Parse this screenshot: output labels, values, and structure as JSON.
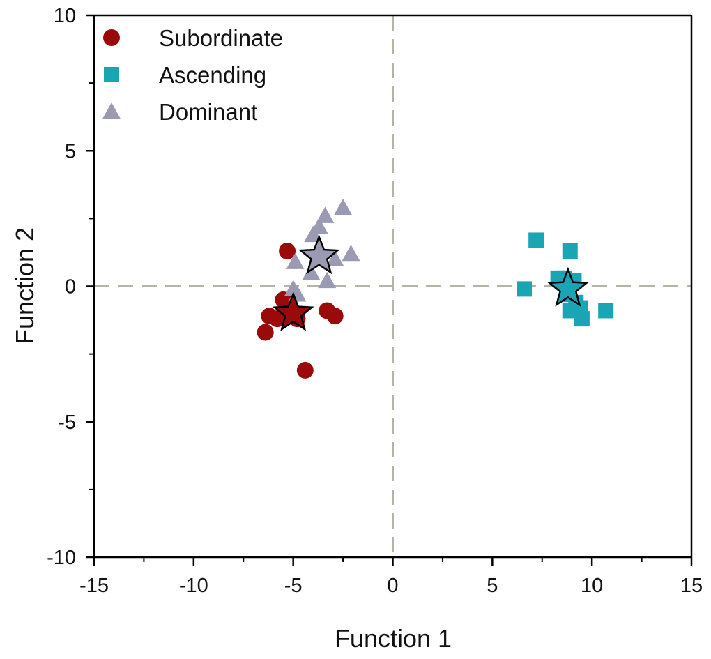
{
  "chart_data": {
    "type": "scatter",
    "xlabel": "Function 1",
    "ylabel": "Function 2",
    "xlim": [
      -15,
      15
    ],
    "ylim": [
      -10,
      10
    ],
    "xticks": [
      -15,
      -10,
      -5,
      0,
      5,
      10,
      15
    ],
    "yticks": [
      -10,
      -5,
      0,
      5,
      10
    ],
    "xtick_labels": [
      "-15",
      "-10",
      "-5",
      "0",
      "5",
      "10",
      "15"
    ],
    "ytick_labels": [
      "-10",
      "-5",
      "0",
      "5",
      "10"
    ],
    "grid": false,
    "reference_lines": {
      "x": 0,
      "y": 0,
      "style": "dashed",
      "color": "#b3b5a6"
    },
    "legend": {
      "position": "top-left"
    },
    "series": [
      {
        "name": "Subordinate",
        "marker": "circle",
        "color": "#9b0a0a",
        "points": [
          [
            -5.3,
            1.3
          ],
          [
            -5.5,
            -0.5
          ],
          [
            -6.2,
            -1.1
          ],
          [
            -5.8,
            -1.2
          ],
          [
            -6.4,
            -1.7
          ],
          [
            -3.3,
            -0.9
          ],
          [
            -2.9,
            -1.1
          ],
          [
            -4.4,
            -3.1
          ],
          [
            -4.8,
            -1.2
          ]
        ],
        "centroid": [
          -5.0,
          -1.0
        ]
      },
      {
        "name": "Ascending",
        "marker": "square",
        "color": "#1aa5b5",
        "points": [
          [
            7.2,
            1.7
          ],
          [
            8.9,
            1.3
          ],
          [
            6.6,
            -0.1
          ],
          [
            8.3,
            0.3
          ],
          [
            8.6,
            0.3
          ],
          [
            9.1,
            0.2
          ],
          [
            8.8,
            -0.3
          ],
          [
            9.2,
            -0.6
          ],
          [
            9.4,
            -0.8
          ],
          [
            8.9,
            -0.9
          ],
          [
            9.5,
            -1.2
          ],
          [
            10.7,
            -0.9
          ]
        ],
        "centroid": [
          8.8,
          -0.1
        ]
      },
      {
        "name": "Dominant",
        "marker": "triangle",
        "color": "#9a9bb3",
        "points": [
          [
            -2.5,
            2.9
          ],
          [
            -3.4,
            2.6
          ],
          [
            -3.7,
            2.2
          ],
          [
            -4.0,
            1.9
          ],
          [
            -2.1,
            1.2
          ],
          [
            -4.9,
            0.9
          ],
          [
            -2.9,
            1.0
          ],
          [
            -3.3,
            0.2
          ],
          [
            -4.1,
            0.5
          ],
          [
            -5.0,
            -0.1
          ],
          [
            -4.8,
            -0.3
          ]
        ],
        "centroid": [
          -3.7,
          1.1
        ]
      }
    ]
  }
}
